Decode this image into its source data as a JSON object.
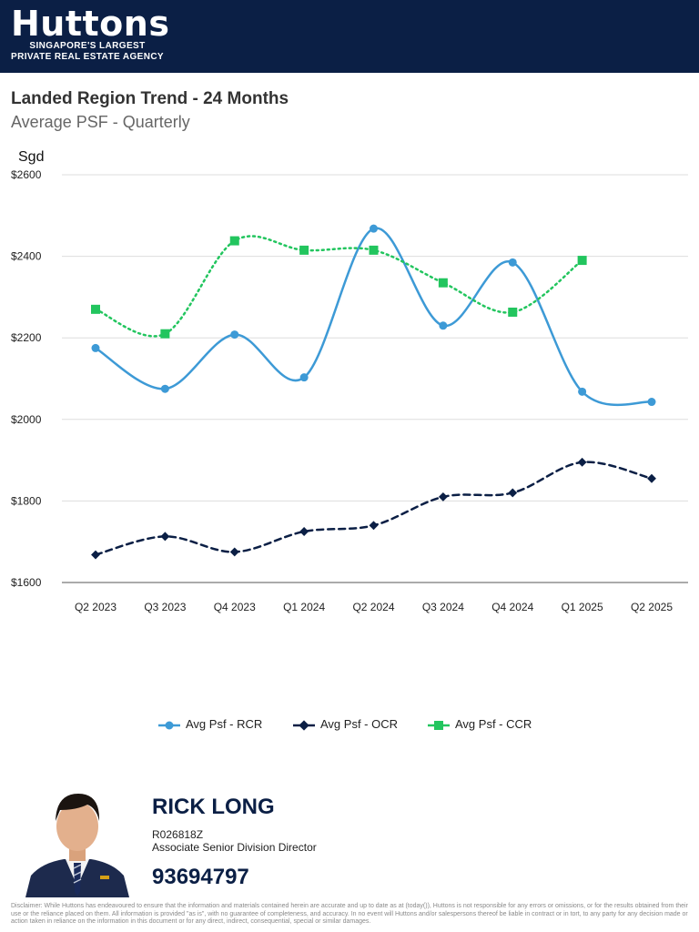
{
  "header": {
    "logo": "Huttons",
    "tagline_line1": "SINGAPORE'S LARGEST",
    "tagline_line2": "PRIVATE REAL ESTATE AGENCY"
  },
  "chart_data": {
    "type": "line",
    "title": "Landed Region Trend - 24 Months",
    "subtitle": "Average PSF - Quarterly",
    "ylabel": "Sgd",
    "ylim": [
      1600,
      2600
    ],
    "yticks": [
      1600,
      1800,
      2000,
      2200,
      2400,
      2600
    ],
    "ytick_labels": [
      "$1600",
      "$1800",
      "$2000",
      "$2200",
      "$2400",
      "$2600"
    ],
    "categories": [
      "Q2 2023",
      "Q3 2023",
      "Q4 2023",
      "Q1 2024",
      "Q2 2024",
      "Q3 2024",
      "Q4 2024",
      "Q1 2025",
      "Q2 2025"
    ],
    "grid": true,
    "legend_position": "bottom",
    "series": [
      {
        "name": "Avg Psf - RCR",
        "color": "#3d9ad6",
        "marker": "circle",
        "style": "solid",
        "values": [
          2175,
          2075,
          2208,
          2103,
          2468,
          2230,
          2385,
          2068,
          2043
        ]
      },
      {
        "name": "Avg Psf - OCR",
        "color": "#0b1f45",
        "marker": "diamond",
        "style": "dashed",
        "values": [
          1668,
          1713,
          1675,
          1725,
          1740,
          1810,
          1820,
          1895,
          1855
        ]
      },
      {
        "name": "Avg Psf - CCR",
        "color": "#22c55e",
        "marker": "square",
        "style": "dotted",
        "values": [
          2270,
          2210,
          2438,
          2415,
          2415,
          2335,
          2263,
          2390,
          null
        ]
      }
    ]
  },
  "agent": {
    "name": "RICK LONG",
    "registration": "R026818Z",
    "title": "Associate Senior Division Director",
    "phone": "93694797"
  },
  "disclaimer": "Disclaimer: While Huttons has endeavoured to ensure that the information and materials contained herein are accurate and up to date as at (today()), Huttons is not responsible for any errors or omissions, or for the results obtained from their use or the reliance placed on them. All information is provided \"as is\", with no guarantee of completeness, and accuracy. In no event will Huttons and/or salespersons thereof be liable in contract or in tort, to any party for any decision made or action taken in reliance on the information in this document or for any direct, indirect, consequential, special or similar damages."
}
